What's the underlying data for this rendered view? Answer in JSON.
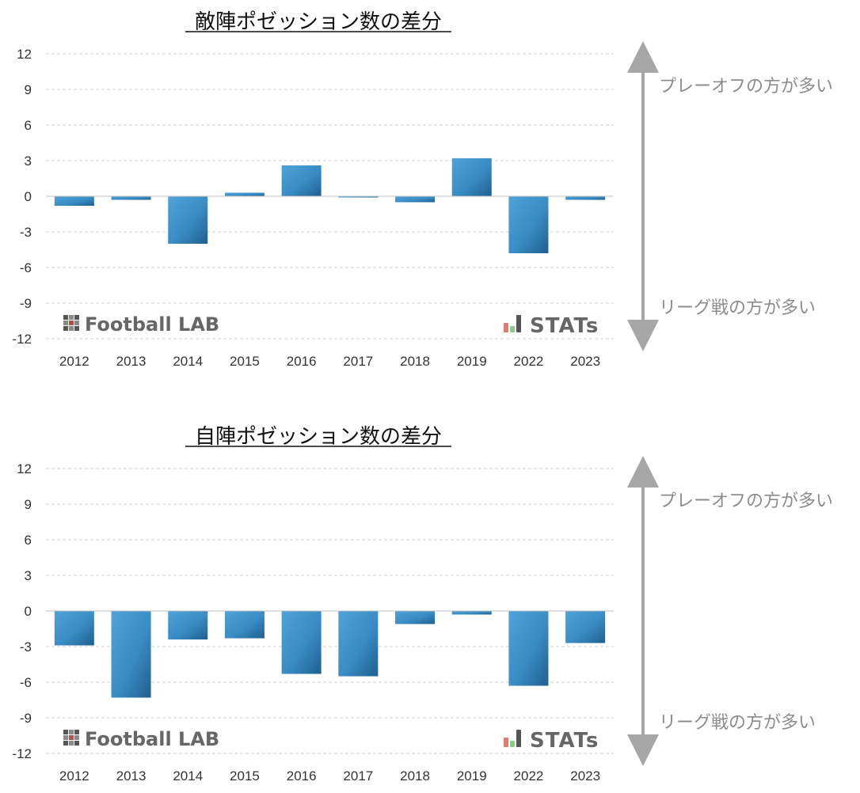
{
  "chart_data": [
    {
      "type": "bar",
      "title": "敵陣ポゼッション数の差分",
      "categories": [
        "2012",
        "2013",
        "2014",
        "2015",
        "2016",
        "2017",
        "2018",
        "2019",
        "2022",
        "2023"
      ],
      "values": [
        -0.8,
        -0.3,
        -4.0,
        0.3,
        2.6,
        -0.1,
        -0.5,
        3.2,
        -4.8,
        -0.3
      ],
      "ylim": [
        -12,
        12
      ],
      "yticks": [
        "12",
        "9",
        "6",
        "3",
        "0",
        "-3",
        "-6",
        "-9",
        "-12"
      ],
      "upper_label": "プレーオフの方が多い",
      "lower_label": "リーグ戦の方が多い",
      "grid": true
    },
    {
      "type": "bar",
      "title": "自陣ポゼッション数の差分",
      "categories": [
        "2012",
        "2013",
        "2014",
        "2015",
        "2016",
        "2017",
        "2018",
        "2019",
        "2022",
        "2023"
      ],
      "values": [
        -2.9,
        -7.3,
        -2.4,
        -2.3,
        -5.3,
        -5.5,
        -1.1,
        -0.3,
        -6.3,
        -2.7
      ],
      "ylim": [
        -12,
        12
      ],
      "yticks": [
        "12",
        "9",
        "6",
        "3",
        "0",
        "-3",
        "-6",
        "-9",
        "-12"
      ],
      "upper_label": "プレーオフの方が多い",
      "lower_label": "リーグ戦の方が多い",
      "grid": true
    }
  ],
  "branding": {
    "footballlab": "Football LAB",
    "stats": "STATs"
  },
  "colors": {
    "bar_top": "#4ea3d8",
    "bar_bottom": "#1f5f8f",
    "arrow": "#a6a6a6"
  }
}
